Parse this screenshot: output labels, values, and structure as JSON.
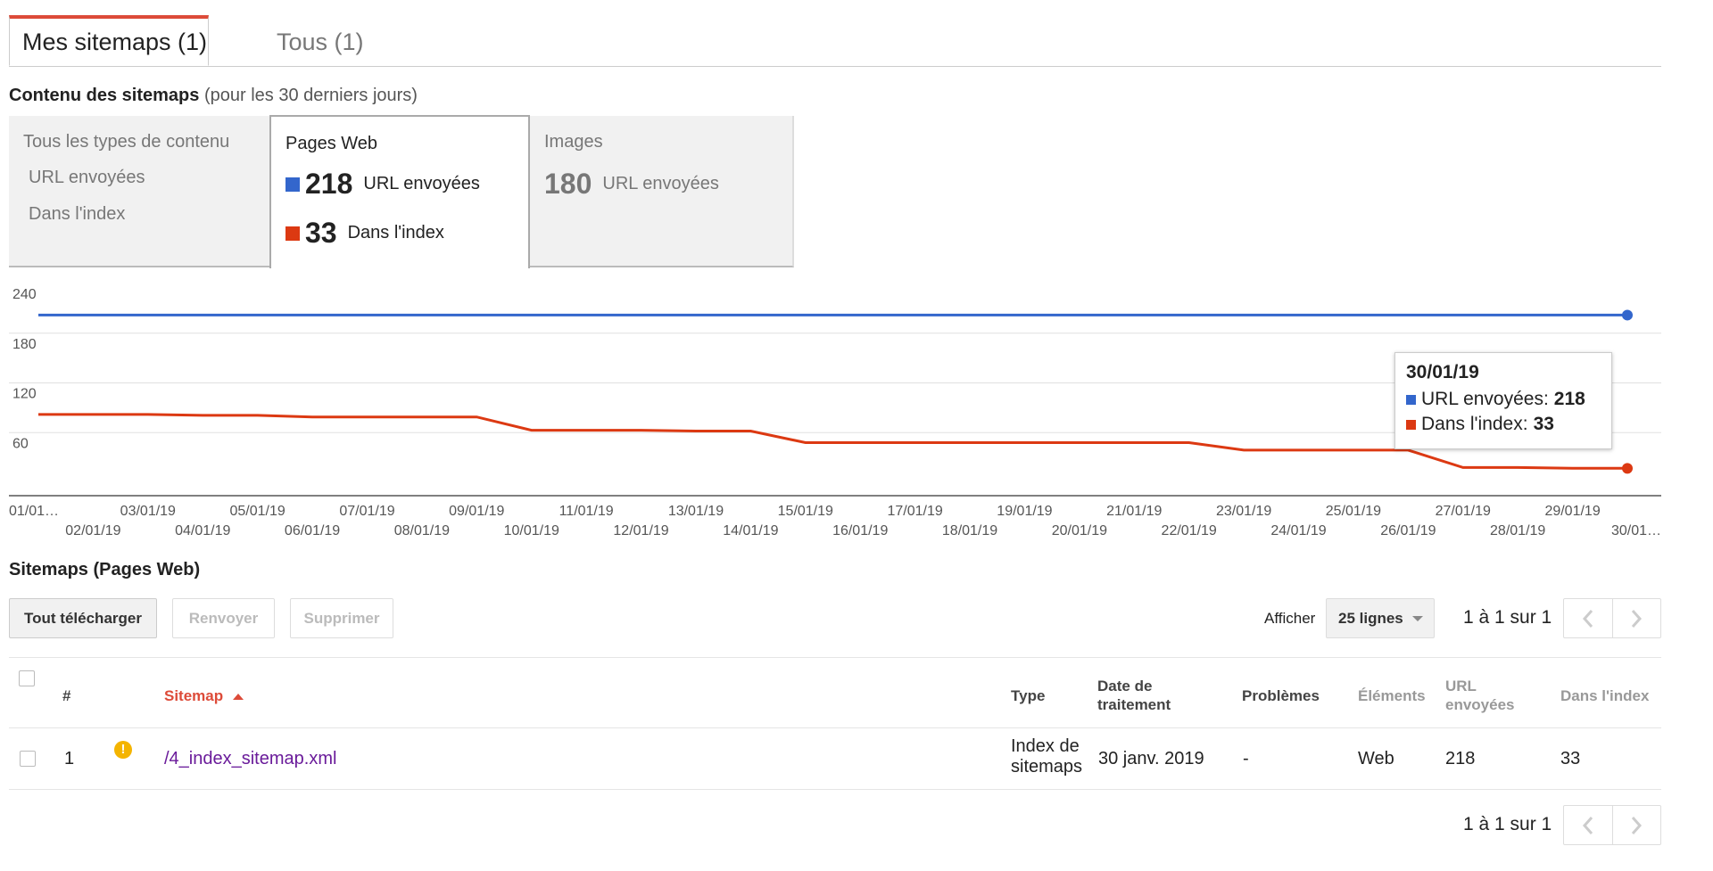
{
  "tabs": [
    {
      "label": "Mes sitemaps (1)",
      "active": true
    },
    {
      "label": "Tous (1)",
      "active": false
    }
  ],
  "content_heading": {
    "bold": "Contenu des sitemaps",
    "sub": "(pour les 30 derniers jours)"
  },
  "content_tabs": {
    "all": {
      "title": "Tous les types de contenu",
      "line1": "URL envoyées",
      "line2": "Dans l'index"
    },
    "web": {
      "title": "Pages Web",
      "submitted_value": "218",
      "submitted_label": "URL envoyées",
      "indexed_value": "33",
      "indexed_label": "Dans l'index"
    },
    "images": {
      "title": "Images",
      "submitted_value": "180",
      "submitted_label": "URL envoyées"
    }
  },
  "colors": {
    "submitted": "#3366cc",
    "indexed": "#dc3912",
    "accent_tab": "#dd4b39",
    "sort_header": "#dd4b39",
    "link": "#6a1b9a",
    "warning": "#f4b400"
  },
  "chart_data": {
    "type": "line",
    "x": [
      "01/01/19",
      "02/01/19",
      "03/01/19",
      "04/01/19",
      "05/01/19",
      "06/01/19",
      "07/01/19",
      "08/01/19",
      "09/01/19",
      "10/01/19",
      "11/01/19",
      "12/01/19",
      "13/01/19",
      "14/01/19",
      "15/01/19",
      "16/01/19",
      "17/01/19",
      "18/01/19",
      "19/01/19",
      "20/01/19",
      "21/01/19",
      "22/01/19",
      "23/01/19",
      "24/01/19",
      "25/01/19",
      "26/01/19",
      "27/01/19",
      "28/01/19",
      "29/01/19",
      "30/01/19"
    ],
    "x_tick_labels": [
      "01/01…",
      "02/01/19",
      "03/01/19",
      "04/01/19",
      "05/01/19",
      "06/01/19",
      "07/01/19",
      "08/01/19",
      "09/01/19",
      "10/01/19",
      "11/01/19",
      "12/01/19",
      "13/01/19",
      "14/01/19",
      "15/01/19",
      "16/01/19",
      "17/01/19",
      "18/01/19",
      "19/01/19",
      "20/01/19",
      "21/01/19",
      "22/01/19",
      "23/01/19",
      "24/01/19",
      "25/01/19",
      "26/01/19",
      "27/01/19",
      "28/01/19",
      "29/01/19",
      "30/01…"
    ],
    "series": [
      {
        "name": "URL envoyées",
        "color": "#3366cc",
        "values": [
          218,
          218,
          218,
          218,
          218,
          218,
          218,
          218,
          218,
          218,
          218,
          218,
          218,
          218,
          218,
          218,
          218,
          218,
          218,
          218,
          218,
          218,
          218,
          218,
          218,
          218,
          218,
          218,
          218,
          218
        ]
      },
      {
        "name": "Dans l'index",
        "color": "#dc3912",
        "values": [
          98,
          98,
          98,
          97,
          97,
          95,
          95,
          95,
          95,
          79,
          79,
          79,
          78,
          78,
          64,
          64,
          64,
          64,
          64,
          64,
          64,
          64,
          55,
          55,
          55,
          55,
          34,
          34,
          33,
          33
        ]
      }
    ],
    "ylim": [
      0,
      240
    ],
    "yticks": [
      60,
      120,
      180,
      240
    ],
    "grid": true
  },
  "tooltip": {
    "date": "30/01/19",
    "row1_label": "URL envoyées:",
    "row1_value": "218",
    "row2_label": "Dans l'index:",
    "row2_value": "33"
  },
  "sitemaps_heading": "Sitemaps (Pages Web)",
  "toolbar": {
    "download_label": "Tout télécharger",
    "resubmit_label": "Renvoyer",
    "delete_label": "Supprimer",
    "show_label": "Afficher",
    "rows_select": "25 lignes",
    "range_text": "1 à 1 sur 1"
  },
  "table": {
    "headers": {
      "num": "#",
      "sitemap": "Sitemap",
      "type": "Type",
      "date": "Date de traitement",
      "problems": "Problèmes",
      "items": "Éléments",
      "submitted": "URL envoyées",
      "indexed": "Dans l'index"
    },
    "rows": [
      {
        "num": "1",
        "sitemap": "/4_index_sitemap.xml",
        "type": "Index de sitemaps",
        "date": "30 janv. 2019",
        "problems": "-",
        "items": "Web",
        "submitted": "218",
        "indexed": "33",
        "status_icon": "warning-icon"
      }
    ]
  },
  "footer_range_text": "1 à 1 sur 1"
}
